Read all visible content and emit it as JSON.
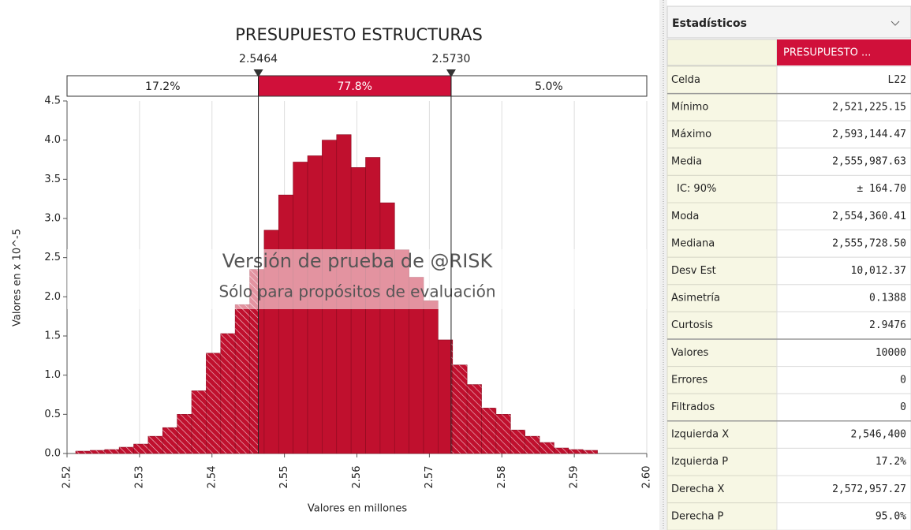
{
  "chart_data": {
    "type": "histogram",
    "title": "PRESUPUESTO ESTRUCTURAS",
    "xlabel": "Valores en millones",
    "ylabel": "Valores en x 10^-5",
    "bins": [
      2.5212,
      2.5232,
      2.5252,
      2.5272,
      2.5292,
      2.5312,
      2.5332,
      2.5352,
      2.5372,
      2.5392,
      2.5412,
      2.5432,
      2.5452,
      2.5472,
      2.5492,
      2.5512,
      2.5532,
      2.5552,
      2.5572,
      2.5592,
      2.5612,
      2.5632,
      2.5652,
      2.5672,
      2.5692,
      2.5712,
      2.5732,
      2.5752,
      2.5772,
      2.5792,
      2.5812,
      2.5832,
      2.5852,
      2.5872,
      2.5892,
      2.5912,
      2.5932
    ],
    "values": [
      0.03,
      0.04,
      0.05,
      0.08,
      0.12,
      0.22,
      0.33,
      0.5,
      0.8,
      1.28,
      1.53,
      1.9,
      2.35,
      2.85,
      3.3,
      3.72,
      3.8,
      4.0,
      4.07,
      3.65,
      3.78,
      3.2,
      2.6,
      2.25,
      1.95,
      1.45,
      1.13,
      0.88,
      0.58,
      0.5,
      0.3,
      0.22,
      0.14,
      0.07,
      0.05,
      0.04
    ],
    "color": "#c0102e",
    "xlim": [
      2.52,
      2.6
    ],
    "ylim": [
      0,
      4.5
    ],
    "xticks": [
      2.52,
      2.53,
      2.54,
      2.55,
      2.56,
      2.57,
      2.58,
      2.59,
      {
        "value": 2.6,
        "label": "2.60"
      }
    ],
    "yticks": [
      {
        "value": 0,
        "label": "0.0"
      },
      0.5,
      {
        "value": 1,
        "label": "1.0"
      },
      1.5,
      {
        "value": 2,
        "label": "2.0"
      },
      2.5,
      {
        "value": 3,
        "label": "3.0"
      },
      3.5,
      {
        "value": 4,
        "label": "4.0"
      },
      4.5
    ],
    "grid": true,
    "delimiters": {
      "values": [
        2.5464,
        2.573
      ],
      "value_labels": [
        "2.5464",
        "2.5730"
      ]
    },
    "regions": {
      "values": [
        17.2,
        77.8,
        5.0
      ],
      "value_labels": [
        "17.2%",
        "77.8%",
        "5.0%"
      ],
      "color": "#d0103a"
    },
    "watermark": [
      "Versión de prueba de @RISK",
      "Sólo para propósitos de evaluación"
    ]
  },
  "stats_panel": {
    "title": "Estadísticos",
    "column": "PRESUPUESTO ...",
    "rows": [
      [
        "Celda",
        "L22"
      ],
      [
        "Mínimo",
        "2,521,225.15"
      ],
      [
        "Máximo",
        "2,593,144.47"
      ],
      [
        "Media",
        "2,555,987.63"
      ],
      [
        "IC: 90%",
        "± 164.70"
      ],
      [
        "Moda",
        "2,554,360.41"
      ],
      [
        "Mediana",
        "2,555,728.50"
      ],
      [
        "Desv Est",
        "10,012.37"
      ],
      [
        "Asimetría",
        "0.1388"
      ],
      [
        "Curtosis",
        "2.9476"
      ],
      [
        "Valores",
        "10000"
      ],
      [
        "Errores",
        "0"
      ],
      [
        "Filtrados",
        "0"
      ],
      [
        "Izquierda X",
        "2,546,400"
      ],
      [
        "Izquierda P",
        "17.2%"
      ],
      [
        "Derecha X",
        "2,572,957.27"
      ],
      [
        "Derecha P",
        "95.0%"
      ]
    ]
  }
}
